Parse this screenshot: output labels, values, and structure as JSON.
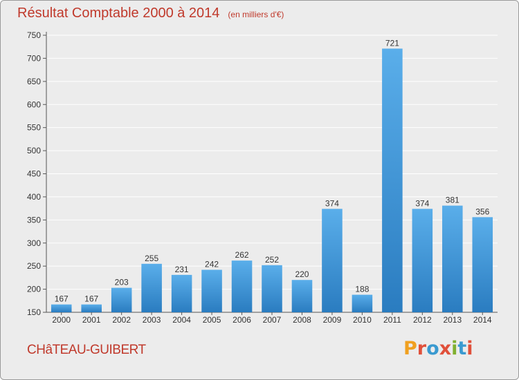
{
  "header": {
    "title": "Résultat Comptable 2000 à 2014",
    "subtitle": "(en milliers d'€)"
  },
  "footer": {
    "town": "CHâTEAU-GUIBERT",
    "brand": "Proxiti"
  },
  "colors": {
    "bar_top": "#5aaeea",
    "bar_bottom": "#2a7cc0",
    "title": "#c0392b",
    "background": "#ececec",
    "gridline": "#ffffff",
    "brand_letters": [
      "#f0a020",
      "#e0503a",
      "#3a9ad0",
      "#e0503a",
      "#80b030",
      "#3a9ad0",
      "#e0503a"
    ]
  },
  "chart_data": {
    "type": "bar",
    "title": "Résultat Comptable 2000 à 2014",
    "subtitle": "(en milliers d'€)",
    "xlabel": "",
    "ylabel": "",
    "categories": [
      "2000",
      "2001",
      "2002",
      "2003",
      "2004",
      "2005",
      "2006",
      "2007",
      "2008",
      "2009",
      "2010",
      "2011",
      "2012",
      "2013",
      "2014"
    ],
    "values": [
      167,
      167,
      203,
      255,
      231,
      242,
      262,
      252,
      220,
      374,
      188,
      721,
      374,
      381,
      356
    ],
    "ylim": [
      150,
      750
    ],
    "yticks": [
      150,
      200,
      250,
      300,
      350,
      400,
      450,
      500,
      550,
      600,
      650,
      700,
      750
    ],
    "grid": true,
    "data_labels": true
  }
}
